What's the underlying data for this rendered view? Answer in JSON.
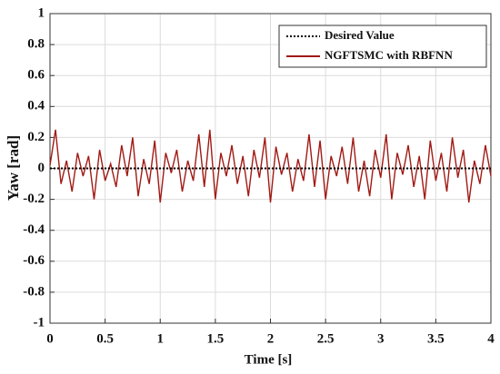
{
  "chart_data": {
    "type": "line",
    "xlabel": "Time [s]",
    "ylabel": "Yaw [rad]",
    "x": [
      0,
      0.05,
      0.1,
      0.15,
      0.2,
      0.25,
      0.3,
      0.35,
      0.4,
      0.45,
      0.5,
      0.55,
      0.6,
      0.65,
      0.7,
      0.75,
      0.8,
      0.85,
      0.9,
      0.95,
      1,
      1.05,
      1.1,
      1.15,
      1.2,
      1.25,
      1.3,
      1.35,
      1.4,
      1.45,
      1.5,
      1.55,
      1.6,
      1.65,
      1.7,
      1.75,
      1.8,
      1.85,
      1.9,
      1.95,
      2,
      2.05,
      2.1,
      2.15,
      2.2,
      2.25,
      2.3,
      2.35,
      2.4,
      2.45,
      2.5,
      2.55,
      2.6,
      2.65,
      2.7,
      2.75,
      2.8,
      2.85,
      2.9,
      2.95,
      3,
      3.05,
      3.1,
      3.15,
      3.2,
      3.25,
      3.3,
      3.35,
      3.4,
      3.45,
      3.5,
      3.55,
      3.6,
      3.65,
      3.7,
      3.75,
      3.8,
      3.85,
      3.9,
      3.95,
      4
    ],
    "series": [
      {
        "name": "Desired Value",
        "color": "#000000",
        "dash": "dotted",
        "values": [
          0,
          0,
          0,
          0,
          0,
          0,
          0,
          0,
          0,
          0,
          0,
          0,
          0,
          0,
          0,
          0,
          0,
          0,
          0,
          0,
          0,
          0,
          0,
          0,
          0,
          0,
          0,
          0,
          0,
          0,
          0,
          0,
          0,
          0,
          0,
          0,
          0,
          0,
          0,
          0,
          0,
          0,
          0,
          0,
          0,
          0,
          0,
          0,
          0,
          0,
          0,
          0,
          0,
          0,
          0,
          0,
          0,
          0,
          0,
          0,
          0,
          0,
          0,
          0,
          0,
          0,
          0,
          0,
          0,
          0,
          0,
          0,
          0,
          0,
          0,
          0,
          0,
          0,
          0,
          0,
          0
        ]
      },
      {
        "name": "NGFTSMC with RBFNN",
        "color": "#a11a14",
        "dash": "solid",
        "values": [
          0.02,
          0.25,
          -0.1,
          0.05,
          -0.15,
          0.1,
          -0.05,
          0.08,
          -0.2,
          0.12,
          -0.08,
          0.03,
          -0.12,
          0.15,
          -0.05,
          0.2,
          -0.18,
          0.06,
          -0.1,
          0.18,
          -0.22,
          0.1,
          -0.03,
          0.12,
          -0.15,
          0.05,
          -0.08,
          0.22,
          -0.12,
          0.25,
          -0.2,
          0.1,
          -0.05,
          0.15,
          -0.1,
          0.08,
          -0.18,
          0.12,
          -0.06,
          0.2,
          -0.22,
          0.14,
          -0.04,
          0.1,
          -0.15,
          0.06,
          -0.08,
          0.22,
          -0.12,
          0.18,
          -0.2,
          0.08,
          -0.05,
          0.14,
          -0.1,
          0.2,
          -0.15,
          0.05,
          -0.18,
          0.12,
          -0.06,
          0.22,
          -0.2,
          0.1,
          -0.04,
          0.15,
          -0.12,
          0.08,
          -0.2,
          0.18,
          -0.08,
          0.1,
          -0.15,
          0.2,
          -0.06,
          0.12,
          -0.22,
          0.05,
          -0.1,
          0.15,
          -0.05
        ]
      }
    ],
    "xlim": [
      0,
      4
    ],
    "xticks": [
      0,
      0.5,
      1,
      1.5,
      2,
      2.5,
      3,
      3.5,
      4
    ],
    "ylim": [
      -1,
      1
    ],
    "yticks": [
      -1,
      -0.8,
      -0.6,
      -0.4,
      -0.2,
      0,
      0.2,
      0.4,
      0.6,
      0.8,
      1
    ],
    "grid": true,
    "legend": "upper right"
  }
}
